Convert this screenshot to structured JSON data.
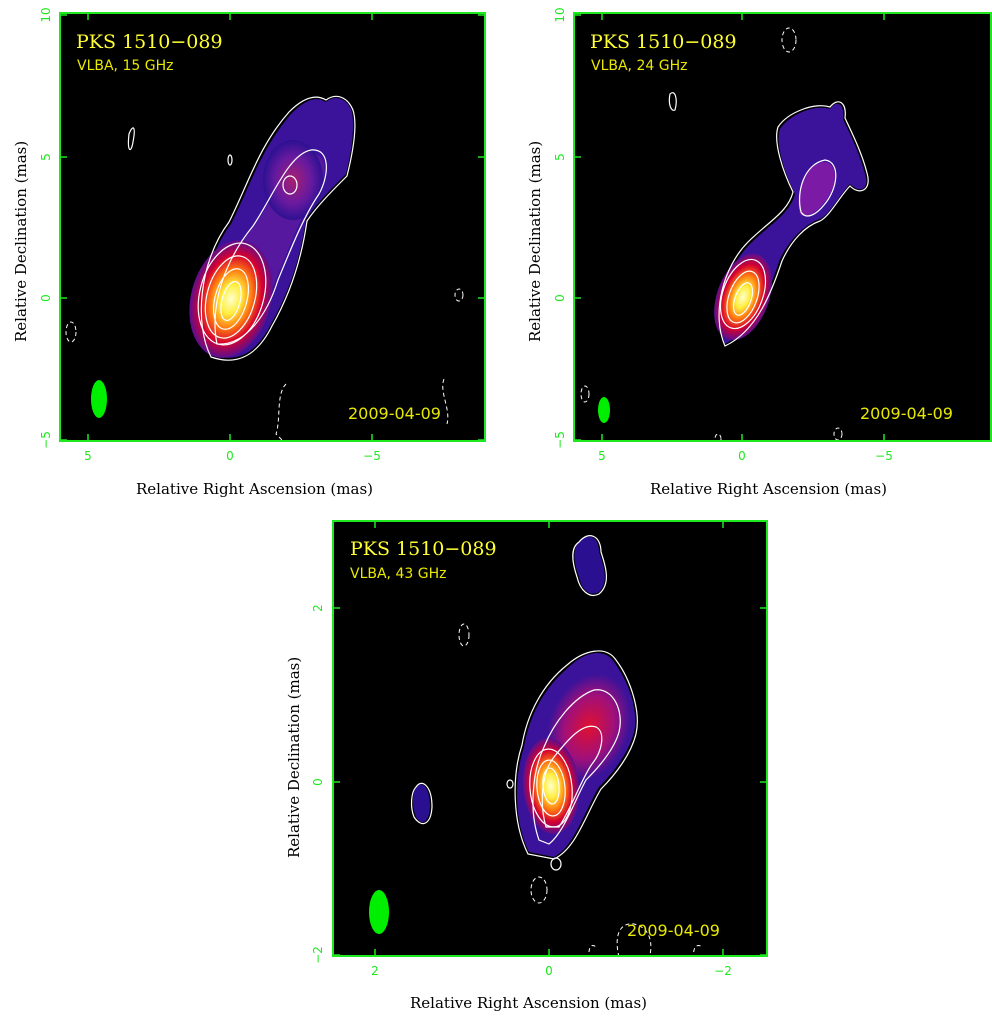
{
  "panels": [
    {
      "id": "p15",
      "title": "PKS 1510−089",
      "subtitle": "VLBA, 15 GHz",
      "date": "2009-04-09",
      "xlabel": "Relative Right Ascension (mas)",
      "ylabel": "Relative Declination (mas)",
      "xticks": [
        "5",
        "0",
        "−5"
      ],
      "yticks": [
        "10",
        "5",
        "0",
        "−5"
      ]
    },
    {
      "id": "p24",
      "title": "PKS 1510−089",
      "subtitle": "VLBA, 24 GHz",
      "date": "2009-04-09",
      "xlabel": "Relative Right Ascension (mas)",
      "ylabel": "Relative Declination (mas)",
      "xticks": [
        "5",
        "0",
        "−5"
      ],
      "yticks": [
        "10",
        "5",
        "0",
        "−5"
      ]
    },
    {
      "id": "p43",
      "title": "PKS 1510−089",
      "subtitle": "VLBA, 43 GHz",
      "date": "2009-04-09",
      "xlabel": "Relative Right Ascension (mas)",
      "ylabel": "Relative Declination (mas)",
      "xticks": [
        "2",
        "0",
        "−2"
      ],
      "yticks": [
        "2",
        "0",
        "−2"
      ]
    }
  ],
  "colors": {
    "frame": "#1ee81e",
    "beam": "#00ee00",
    "label_text": "#ffff33",
    "contour": "#ffffff",
    "background": "#000000"
  }
}
